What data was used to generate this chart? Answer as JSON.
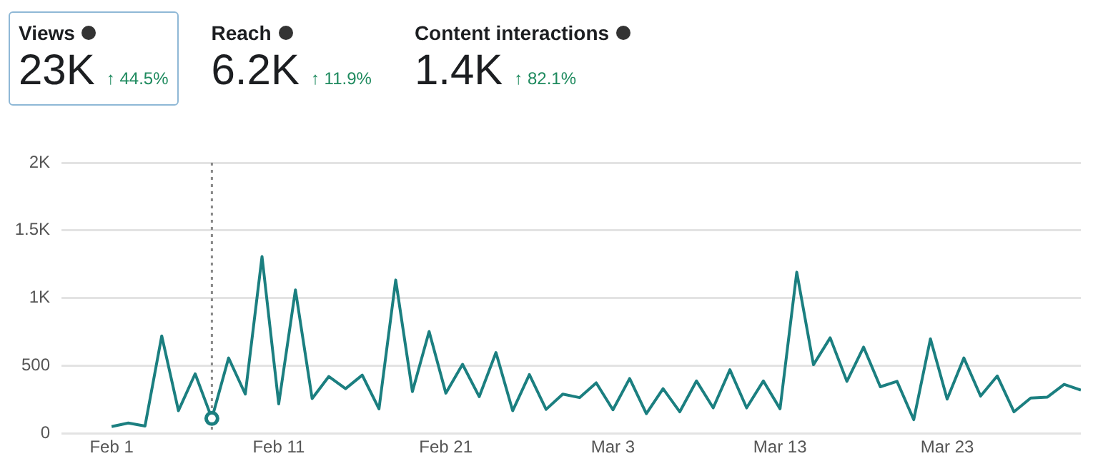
{
  "chart_data": [
    {
      "type": "other",
      "annotations": [
        "Views",
        "23K",
        "↑ 44.5%",
        "Reach",
        "6.2K",
        "↑ 11.9%",
        "Content interactions",
        "1.4K",
        "↑ 82.1%"
      ]
    },
    {
      "type": "line",
      "x": [
        "--02-01",
        "--02-02",
        "--02-03",
        "--02-04",
        "--02-05",
        "--02-06",
        "--02-07",
        "--02-08",
        "--02-09",
        "--02-10",
        "--02-11",
        "--02-12",
        "--02-13",
        "--02-14",
        "--02-15",
        "--02-16",
        "--02-17",
        "--02-18",
        "--02-19",
        "--02-20",
        "--02-21",
        "--02-22",
        "--02-23",
        "--02-24",
        "--02-25",
        "--02-26",
        "--02-27",
        "--02-28",
        "--03-01",
        "--03-02",
        "--03-03",
        "--03-04",
        "--03-05",
        "--03-06",
        "--03-07",
        "--03-08",
        "--03-09",
        "--03-10",
        "--03-11",
        "--03-12",
        "--03-13",
        "--03-14",
        "--03-15",
        "--03-16",
        "--03-17",
        "--03-18",
        "--03-19",
        "--03-20",
        "--03-21",
        "--03-22",
        "--03-23",
        "--03-24",
        "--03-25",
        "--03-26",
        "--03-27",
        "--03-28",
        "--03-29",
        "--03-30",
        "--03-31"
      ],
      "series": [
        {
          "type": "line",
          "color": "#1b7f80",
          "values": [
            50,
            76,
            54,
            720,
            167,
            440,
            110,
            557,
            290,
            1307,
            217,
            1060,
            257,
            420,
            330,
            430,
            181,
            1133,
            308,
            753,
            297,
            510,
            271,
            597,
            167,
            434,
            177,
            290,
            264,
            373,
            174,
            405,
            145,
            330,
            159,
            387,
            188,
            470,
            188,
            387,
            181,
            1191,
            507,
            706,
            384,
            637,
            344,
            384,
            101,
            699,
            253,
            557,
            275,
            424,
            159,
            261,
            268,
            362,
            319
          ]
        },
        {
          "type": "scatter",
          "color": "#1b7f80",
          "marker": "circle",
          "x": [
            "--02-07"
          ],
          "values": [
            110
          ]
        }
      ],
      "xlim": [
        "--01-29",
        "--03-31"
      ],
      "xticks": [
        {
          "value": "--02-01",
          "label": "Feb 1"
        },
        {
          "value": "--02-11",
          "label": "Feb 11"
        },
        {
          "value": "--02-21",
          "label": "Feb 21"
        },
        {
          "value": "--03-03",
          "label": "Mar 3"
        },
        {
          "value": "--03-13",
          "label": "Mar 13"
        },
        {
          "value": "--03-23",
          "label": "Mar 23"
        }
      ],
      "ylim": [
        0,
        2000
      ],
      "yticks": [
        0,
        500,
        {
          "value": 1000,
          "label": "1K"
        },
        {
          "value": 1500,
          "label": "1.5K"
        },
        {
          "value": 2000,
          "label": "2K"
        }
      ],
      "ref_lines": [
        {
          "axis": "x",
          "value": "--02-07",
          "color": "#888888",
          "line_style": "dotted"
        }
      ],
      "grid": "y",
      "legend": false,
      "marker": "none",
      "line_style": "solid"
    }
  ]
}
